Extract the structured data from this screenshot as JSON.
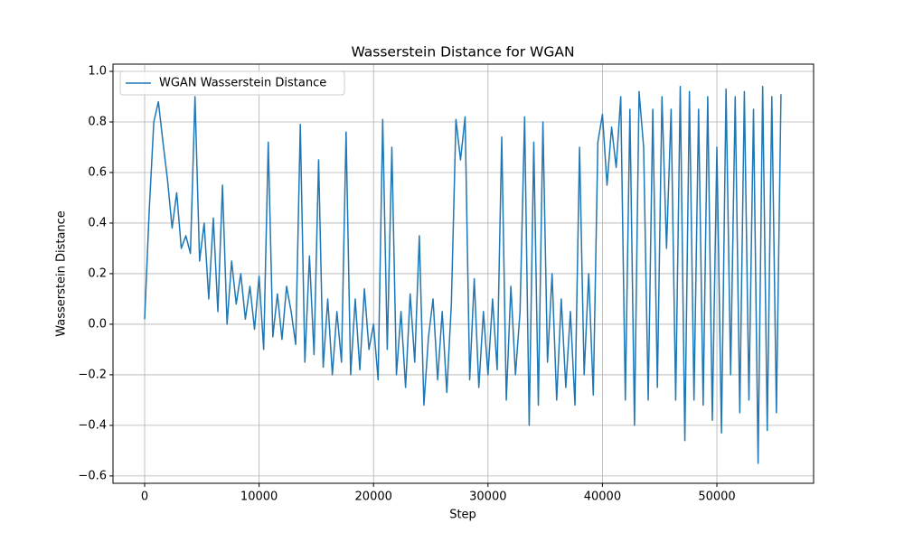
{
  "chart_data": {
    "type": "line",
    "title": "Wasserstein Distance for WGAN",
    "x_label": "Step",
    "y_label": "Wasserstein Distance",
    "x": [
      0,
      400,
      800,
      1200,
      1600,
      2000,
      2400,
      2800,
      3200,
      3600,
      4000,
      4400,
      4800,
      5200,
      5600,
      6000,
      6400,
      6800,
      7200,
      7600,
      8000,
      8400,
      8800,
      9200,
      9600,
      10000,
      10400,
      10800,
      11200,
      11600,
      12000,
      12400,
      12800,
      13200,
      13600,
      14000,
      14400,
      14800,
      15200,
      15600,
      16000,
      16400,
      16800,
      17200,
      17600,
      18000,
      18400,
      18800,
      19200,
      19600,
      20000,
      20400,
      20800,
      21200,
      21600,
      22000,
      22400,
      22800,
      23200,
      23600,
      24000,
      24400,
      24800,
      25200,
      25600,
      26000,
      26400,
      26800,
      27200,
      27600,
      28000,
      28400,
      28800,
      29200,
      29600,
      30000,
      30400,
      30800,
      31200,
      31600,
      32000,
      32400,
      32800,
      33200,
      33600,
      34000,
      34400,
      34800,
      35200,
      35600,
      36000,
      36400,
      36800,
      37200,
      37600,
      38000,
      38400,
      38800,
      39200,
      39600,
      40000,
      40400,
      40800,
      41200,
      41600,
      42000,
      42400,
      42800,
      43200,
      43600,
      44000,
      44400,
      44800,
      45200,
      45600,
      46000,
      46400,
      46800,
      47200,
      47600,
      48000,
      48400,
      48800,
      49200,
      49600,
      50000,
      50400,
      50800,
      51200,
      51600,
      52000,
      52400,
      52800,
      53200,
      53600,
      54000,
      54400,
      54800,
      55200,
      55600
    ],
    "series": [
      {
        "name": "WGAN Wasserstein Distance",
        "color": "#1f77b4",
        "values": [
          0.02,
          0.45,
          0.8,
          0.88,
          0.72,
          0.57,
          0.38,
          0.52,
          0.3,
          0.35,
          0.28,
          0.9,
          0.25,
          0.4,
          0.1,
          0.42,
          0.05,
          0.55,
          0.0,
          0.25,
          0.08,
          0.2,
          0.02,
          0.15,
          -0.02,
          0.19,
          -0.1,
          0.72,
          -0.05,
          0.12,
          -0.06,
          0.15,
          0.05,
          -0.08,
          0.79,
          -0.15,
          0.27,
          -0.12,
          0.65,
          -0.17,
          0.1,
          -0.2,
          0.05,
          -0.15,
          0.76,
          -0.2,
          0.1,
          -0.18,
          0.14,
          -0.1,
          0.0,
          -0.22,
          0.81,
          -0.1,
          0.7,
          -0.2,
          0.05,
          -0.25,
          0.12,
          -0.15,
          0.35,
          -0.32,
          -0.05,
          0.1,
          -0.22,
          0.05,
          -0.27,
          0.08,
          0.81,
          0.65,
          0.82,
          -0.22,
          0.18,
          -0.25,
          0.05,
          -0.2,
          0.1,
          -0.18,
          0.74,
          -0.3,
          0.15,
          -0.2,
          0.05,
          0.82,
          -0.4,
          0.72,
          -0.32,
          0.8,
          -0.15,
          0.2,
          -0.3,
          0.1,
          -0.25,
          0.05,
          -0.32,
          0.7,
          -0.2,
          0.2,
          -0.28,
          0.72,
          0.83,
          0.55,
          0.78,
          0.62,
          0.9,
          -0.3,
          0.85,
          -0.4,
          0.92,
          0.7,
          -0.3,
          0.85,
          -0.25,
          0.9,
          0.3,
          0.85,
          -0.3,
          0.94,
          -0.46,
          0.92,
          -0.3,
          0.85,
          -0.32,
          0.9,
          -0.38,
          0.7,
          -0.43,
          0.93,
          -0.2,
          0.9,
          -0.35,
          0.92,
          -0.3,
          0.85,
          -0.55,
          0.94,
          -0.42,
          0.9,
          -0.35,
          0.91
        ]
      }
    ],
    "xlim": [
      -2765,
      58450
    ],
    "xticks": [
      0,
      10000,
      20000,
      30000,
      40000,
      50000
    ],
    "ylim": [
      -0.629,
      1.0286
    ],
    "yticks": [
      {
        "value": -0.6,
        "label": "−0.6"
      },
      {
        "value": -0.4,
        "label": "−0.4"
      },
      {
        "value": -0.2,
        "label": "−0.2"
      },
      {
        "value": 0,
        "label": "0.0"
      },
      0.2,
      0.4,
      0.6,
      0.8,
      {
        "value": 1,
        "label": "1.0"
      }
    ],
    "grid": true,
    "legend": "upper-left"
  }
}
